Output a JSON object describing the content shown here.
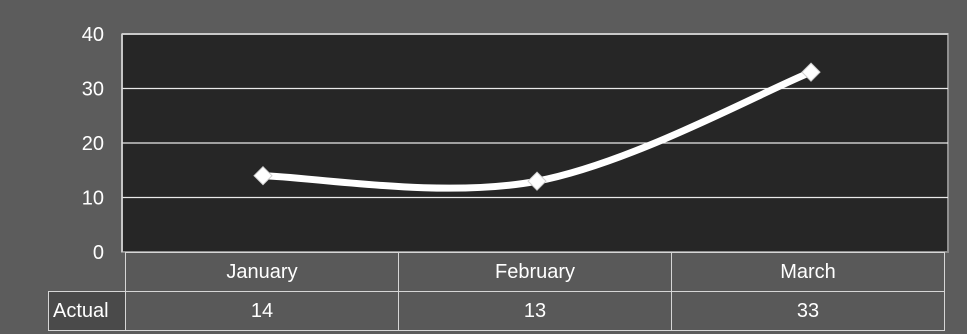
{
  "chart_data": {
    "type": "line",
    "title": "",
    "xlabel": "",
    "ylabel": "",
    "categories": [
      "January",
      "February",
      "March"
    ],
    "series": [
      {
        "name": "Actual",
        "values": [
          14,
          13,
          33
        ],
        "color": "#ffffff",
        "marker": "diamond",
        "smooth": true
      }
    ],
    "ylim": [
      0,
      40
    ],
    "yticks": [
      0,
      10,
      20,
      30,
      40
    ],
    "grid": true,
    "data_table": true,
    "colors": {
      "background": "#5c5c5c",
      "plot_area": "#262626",
      "gridline": "#e9e9e9",
      "text": "#ffffff"
    }
  }
}
